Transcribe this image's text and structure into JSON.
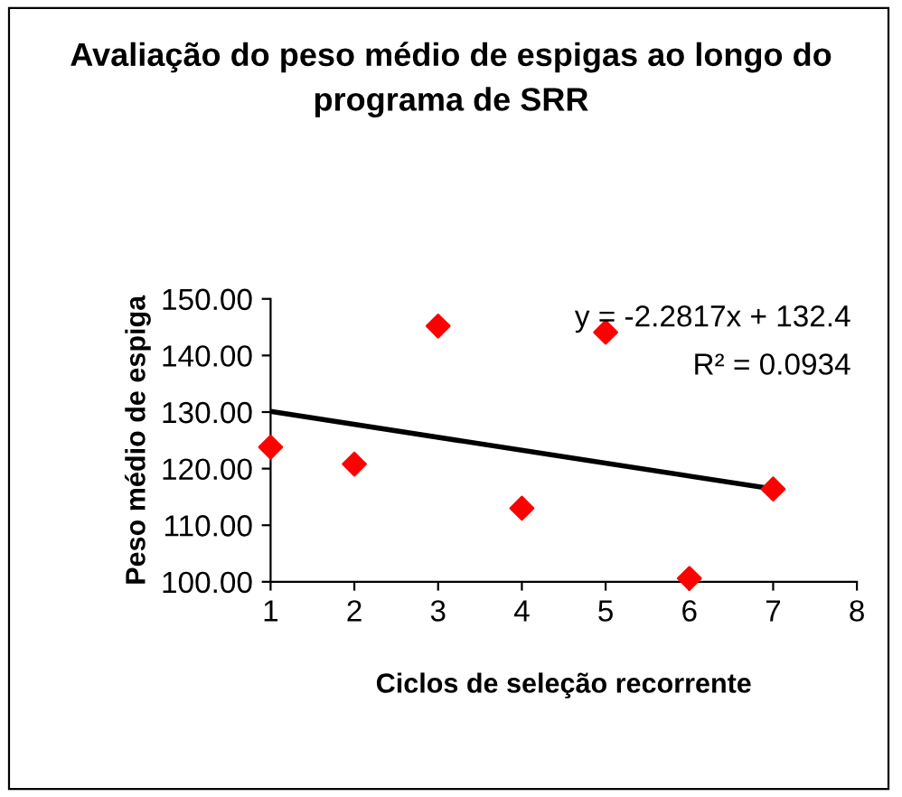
{
  "chart_data": {
    "type": "scatter",
    "title": "Avaliação do peso médio de espigas ao longo do programa de SRR",
    "xlabel": "Ciclos de seleção recorrente",
    "ylabel": "Peso médio de espiga",
    "x": [
      1,
      2,
      3,
      4,
      5,
      6,
      7
    ],
    "series": [
      {
        "color": "#ff0000",
        "marker": "diamond",
        "values": [
          123.8,
          120.8,
          145.2,
          113.0,
          144.1,
          100.6,
          116.4
        ]
      },
      {
        "type": "line",
        "color": "#000000",
        "line_style": "solid",
        "marker": "none",
        "x": [
          1,
          7
        ],
        "values": [
          130.1,
          116.4
        ]
      }
    ],
    "annotations": [
      "y = -2.2817x + 132.4",
      "R² = 0.0934"
    ],
    "xlim": [
      1,
      8
    ],
    "xticks": [
      1,
      2,
      3,
      4,
      5,
      6,
      7,
      8
    ],
    "ylim": [
      100,
      150
    ],
    "yticks": [
      {
        "value": 100,
        "label": "100.00"
      },
      {
        "value": 110,
        "label": "110.00"
      },
      {
        "value": 120,
        "label": "120.00"
      },
      {
        "value": 130,
        "label": "130.00"
      },
      {
        "value": 140,
        "label": "140.00"
      },
      {
        "value": 150,
        "label": "150.00"
      }
    ],
    "grid": false,
    "legend": false
  }
}
